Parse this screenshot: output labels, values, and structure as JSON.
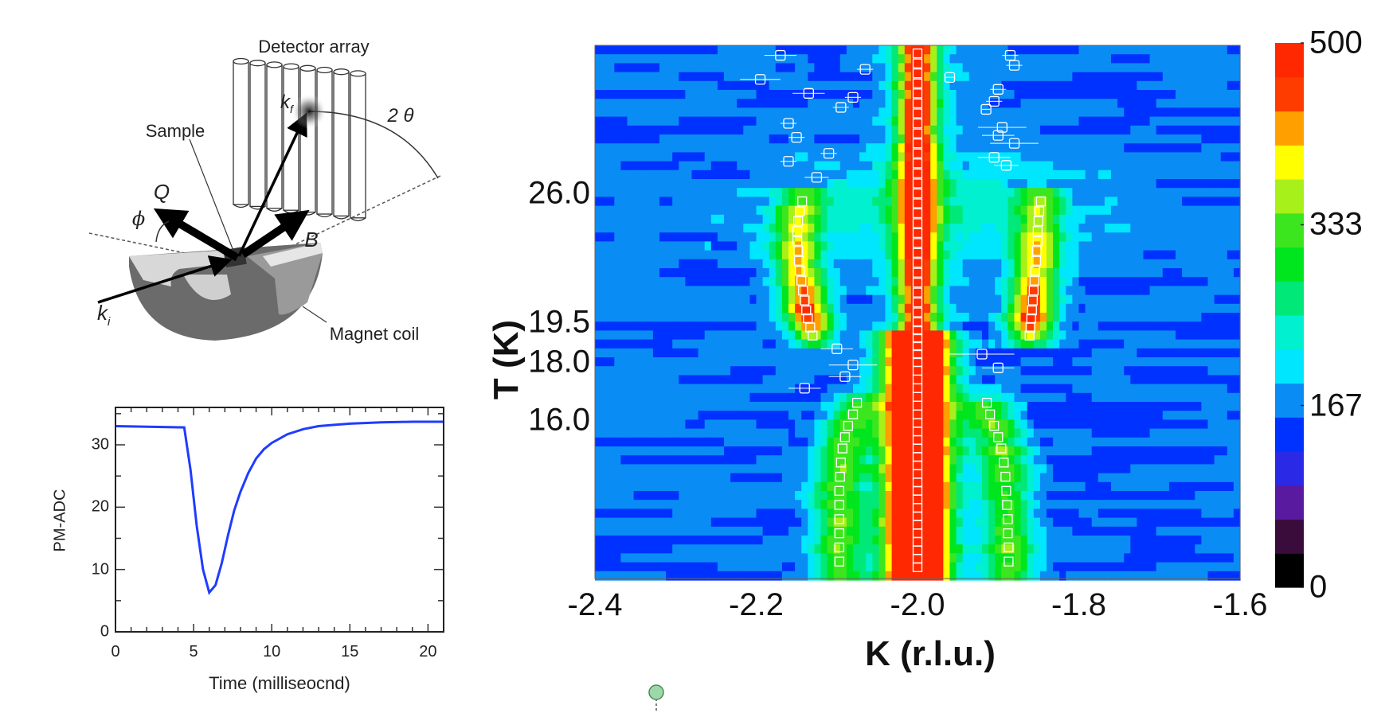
{
  "schematic": {
    "detector_label": "Detector array",
    "sample_label": "Sample",
    "magnet_label": "Magnet coil",
    "kf_label": "k",
    "kf_sub": "f",
    "ki_label": "k",
    "ki_sub": "i",
    "q_label": "Q",
    "b_label": "B",
    "phi_label": "ϕ",
    "two_theta_label": "2 θ"
  },
  "chart_data": [
    {
      "type": "line",
      "title": "",
      "xlabel": "Time (milliseocnd)",
      "ylabel": "PM-ADC",
      "xlim": [
        0,
        21
      ],
      "ylim": [
        0,
        36
      ],
      "xticks": [
        "0",
        "5",
        "10",
        "15",
        "20"
      ],
      "yticks": [
        "0",
        "10",
        "20",
        "30"
      ],
      "line_color": "#1f3cff",
      "x": [
        0,
        4.4,
        4.8,
        5.2,
        5.6,
        6.0,
        6.4,
        6.8,
        7.2,
        7.6,
        8.0,
        8.5,
        9.0,
        9.5,
        10,
        11,
        12,
        13,
        14,
        15,
        17,
        19,
        21
      ],
      "y": [
        33,
        32.8,
        26,
        17,
        10,
        6.3,
        7.5,
        11,
        15.5,
        19.5,
        22.5,
        25.5,
        27.8,
        29.3,
        30.3,
        31.7,
        32.5,
        33,
        33.2,
        33.4,
        33.6,
        33.7,
        33.7
      ]
    },
    {
      "type": "heatmap",
      "title": "",
      "xlabel": "K (r.l.u.)",
      "ylabel": "T (K)",
      "xlim": [
        -2.4,
        -1.6
      ],
      "xticks": [
        "-2.4",
        "-2.2",
        "-2.0",
        "-1.8",
        "-1.6"
      ],
      "yticks": [
        "26.0",
        "19.5",
        "18.0",
        "16.0"
      ],
      "colorbar": {
        "range": [
          0,
          500
        ],
        "ticks": [
          "500",
          "333",
          "167",
          "0"
        ],
        "colors": [
          "#000000",
          "#3a0c3c",
          "#5a1aa0",
          "#2a2ae6",
          "#0032ff",
          "#0a8cf5",
          "#00e6ff",
          "#00f0d0",
          "#00e878",
          "#00e61e",
          "#3ce61e",
          "#a8f01a",
          "#ffff00",
          "#ffa000",
          "#ff3c00",
          "#ff2800"
        ]
      },
      "features": {
        "background_intensity": 160,
        "central_peak_K": -2.0,
        "transition_T": 19.3
      },
      "marker_color": "#ffffff",
      "markers": {
        "central": {
          "K": -2.0,
          "T": [
            33.0,
            32.5,
            32.0,
            31.5,
            31.0,
            30.5,
            30.0,
            29.5,
            29.0,
            28.5,
            28.0,
            27.5,
            27.0,
            26.5,
            26.0,
            25.5,
            25.0,
            24.5,
            24.0,
            23.5,
            23.0,
            22.5,
            22.0,
            21.5,
            21.0,
            20.5,
            20.0,
            19.5,
            19.2,
            18.9,
            18.6,
            18.3,
            18.0,
            17.7,
            17.4,
            17.1,
            16.8,
            16.5,
            16.2,
            15.9,
            15.6,
            15.3,
            15.0,
            14.7,
            14.4,
            14.1,
            13.8,
            13.5,
            13.2,
            12.9,
            12.6,
            12.3,
            12.0,
            11.7,
            11.4,
            11.1,
            10.8
          ]
        },
        "satellite_high_T": [
          [
            -2.143,
            25.6
          ],
          [
            -2.146,
            25.1
          ],
          [
            -2.148,
            24.6
          ],
          [
            -2.149,
            24.1
          ],
          [
            -2.149,
            23.6
          ],
          [
            -2.148,
            23.1
          ],
          [
            -2.147,
            22.6
          ],
          [
            -2.146,
            22.1
          ],
          [
            -2.144,
            21.6
          ],
          [
            -2.142,
            21.1
          ],
          [
            -2.14,
            20.6
          ],
          [
            -2.138,
            20.1
          ],
          [
            -2.136,
            19.7
          ],
          [
            -2.133,
            19.3
          ],
          [
            -2.13,
            19.0
          ],
          [
            -1.847,
            25.6
          ],
          [
            -1.849,
            25.1
          ],
          [
            -1.85,
            24.6
          ],
          [
            -1.851,
            24.1
          ],
          [
            -1.851,
            23.6
          ],
          [
            -1.852,
            23.1
          ],
          [
            -1.853,
            22.6
          ],
          [
            -1.854,
            22.1
          ],
          [
            -1.855,
            21.6
          ],
          [
            -1.856,
            21.1
          ],
          [
            -1.857,
            20.6
          ],
          [
            -1.858,
            20.1
          ],
          [
            -1.859,
            19.7
          ],
          [
            -1.86,
            19.3
          ],
          [
            -1.861,
            19.0
          ]
        ],
        "satellite_low_T": [
          [
            -2.075,
            16.6
          ],
          [
            -2.08,
            16.2
          ],
          [
            -2.086,
            15.8
          ],
          [
            -2.09,
            15.4
          ],
          [
            -2.093,
            15.0
          ],
          [
            -2.095,
            14.5
          ],
          [
            -2.096,
            14.0
          ],
          [
            -2.097,
            13.5
          ],
          [
            -2.097,
            13.0
          ],
          [
            -2.097,
            12.5
          ],
          [
            -2.097,
            12.0
          ],
          [
            -2.097,
            11.5
          ],
          [
            -2.097,
            11.0
          ],
          [
            -1.914,
            16.6
          ],
          [
            -1.91,
            16.2
          ],
          [
            -1.905,
            15.8
          ],
          [
            -1.9,
            15.4
          ],
          [
            -1.896,
            15.0
          ],
          [
            -1.893,
            14.5
          ],
          [
            -1.891,
            14.0
          ],
          [
            -1.89,
            13.5
          ],
          [
            -1.889,
            13.0
          ],
          [
            -1.888,
            12.5
          ],
          [
            -1.888,
            12.0
          ],
          [
            -1.887,
            11.5
          ],
          [
            -1.887,
            11.0
          ]
        ],
        "scattered_with_errorbars": [
          [
            -2.17,
            32.9,
            0.02
          ],
          [
            -2.135,
            31.0,
            0.02
          ],
          [
            -2.065,
            32.2,
            0.01
          ],
          [
            -2.195,
            31.7,
            0.025
          ],
          [
            -2.08,
            30.8,
            0.01
          ],
          [
            -2.095,
            30.3,
            0.01
          ],
          [
            -2.16,
            29.5,
            0.01
          ],
          [
            -2.15,
            28.8,
            0.01
          ],
          [
            -2.11,
            28.0,
            0.01
          ],
          [
            -2.16,
            27.6,
            0.01
          ],
          [
            -2.125,
            26.8,
            0.015
          ],
          [
            -1.885,
            32.9,
            0.01
          ],
          [
            -1.88,
            32.4,
            0.01
          ],
          [
            -1.96,
            31.8,
            0.005
          ],
          [
            -1.9,
            31.2,
            0.01
          ],
          [
            -1.905,
            30.6,
            0.01
          ],
          [
            -1.915,
            30.2,
            0.005
          ],
          [
            -1.895,
            29.3,
            0.03
          ],
          [
            -1.9,
            28.9,
            0.02
          ],
          [
            -1.88,
            28.5,
            0.03
          ],
          [
            -1.905,
            27.8,
            0.02
          ],
          [
            -1.89,
            27.4,
            0.015
          ],
          [
            -2.1,
            18.5,
            0.02
          ],
          [
            -2.08,
            17.9,
            0.03
          ],
          [
            -2.09,
            17.5,
            0.02
          ],
          [
            -2.14,
            17.1,
            0.02
          ],
          [
            -1.92,
            18.3,
            0.04
          ],
          [
            -1.9,
            17.8,
            0.02
          ]
        ]
      }
    }
  ]
}
